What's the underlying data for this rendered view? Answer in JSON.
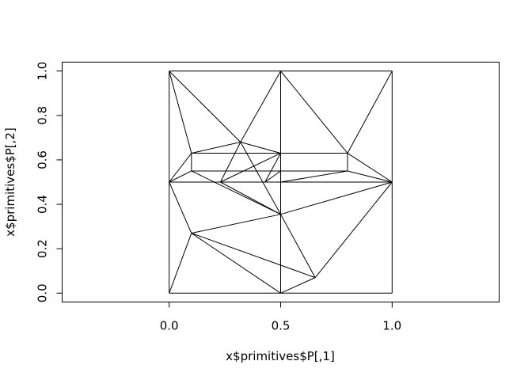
{
  "chart_data": {
    "type": "line",
    "title": "",
    "xlabel": "x$primitives$P[,1]",
    "ylabel": "x$primitives$P[,2]",
    "xlim": [
      -0.48,
      1.48
    ],
    "ylim": [
      -0.04,
      1.04
    ],
    "grid": false,
    "x_ticks": [
      0.0,
      0.5,
      1.0
    ],
    "x_tick_labels": [
      "0.0",
      "0.5",
      "1.0"
    ],
    "y_ticks": [
      0.0,
      0.2,
      0.4,
      0.6,
      0.8,
      1.0
    ],
    "y_tick_labels": [
      "0.0",
      "0.2",
      "0.4",
      "0.6",
      "0.8",
      "1.0"
    ],
    "points": [
      [
        0.0,
        0.0
      ],
      [
        0.5,
        0.0
      ],
      [
        1.0,
        0.0
      ],
      [
        0.0,
        0.5
      ],
      [
        1.0,
        0.5
      ],
      [
        0.0,
        1.0
      ],
      [
        0.5,
        1.0
      ],
      [
        1.0,
        1.0
      ],
      [
        0.1,
        0.27
      ],
      [
        0.5,
        0.355
      ],
      [
        0.655,
        0.07
      ],
      [
        0.1,
        0.63
      ],
      [
        0.1,
        0.55
      ],
      [
        0.32,
        0.68
      ],
      [
        0.5,
        0.63
      ],
      [
        0.5,
        0.55
      ],
      [
        0.8,
        0.63
      ],
      [
        0.8,
        0.55
      ],
      [
        0.23,
        0.5
      ],
      [
        0.43,
        0.5
      ],
      [
        0.5,
        0.5
      ]
    ],
    "segments": [
      [
        0,
        1
      ],
      [
        1,
        2
      ],
      [
        2,
        4
      ],
      [
        4,
        7
      ],
      [
        6,
        7
      ],
      [
        5,
        6
      ],
      [
        3,
        5
      ],
      [
        0,
        3
      ],
      [
        1,
        6
      ],
      [
        3,
        4
      ],
      [
        0,
        8
      ],
      [
        3,
        8
      ],
      [
        8,
        9
      ],
      [
        8,
        10
      ],
      [
        8,
        1
      ],
      [
        1,
        10
      ],
      [
        10,
        9
      ],
      [
        10,
        4
      ],
      [
        9,
        4
      ],
      [
        18,
        9
      ],
      [
        12,
        9
      ],
      [
        5,
        11
      ],
      [
        3,
        11
      ],
      [
        11,
        14
      ],
      [
        11,
        12
      ],
      [
        11,
        13
      ],
      [
        5,
        13
      ],
      [
        3,
        12
      ],
      [
        12,
        15
      ],
      [
        15,
        17
      ],
      [
        14,
        16
      ],
      [
        16,
        17
      ],
      [
        13,
        14
      ],
      [
        13,
        18
      ],
      [
        18,
        14
      ],
      [
        13,
        9
      ],
      [
        13,
        6
      ],
      [
        14,
        19
      ],
      [
        19,
        15
      ],
      [
        6,
        16
      ],
      [
        16,
        4
      ],
      [
        17,
        20
      ],
      [
        17,
        4
      ],
      [
        7,
        16
      ]
    ]
  }
}
